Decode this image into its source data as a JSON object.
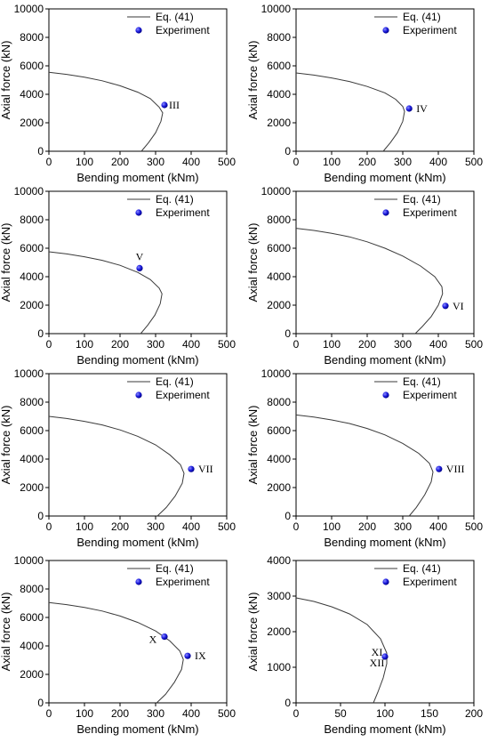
{
  "chart_data": [
    {
      "type": "line",
      "xlabel": "Bending moment (kNm)",
      "ylabel": "Axial force (kN)",
      "xlim": [
        0,
        500
      ],
      "ylim": [
        0,
        10000
      ],
      "xticks": [
        0,
        100,
        200,
        300,
        400,
        500
      ],
      "yticks": [
        0,
        2000,
        4000,
        6000,
        8000,
        10000
      ],
      "legend_position": "top-right",
      "series": [
        {
          "name": "Eq. (41)",
          "kind": "line",
          "points": [
            [
              0,
              5550
            ],
            [
              50,
              5400
            ],
            [
              100,
              5200
            ],
            [
              150,
              4950
            ],
            [
              200,
              4600
            ],
            [
              250,
              4150
            ],
            [
              285,
              3700
            ],
            [
              310,
              3100
            ],
            [
              320,
              2700
            ],
            [
              315,
              2100
            ],
            [
              300,
              1300
            ],
            [
              280,
              600
            ],
            [
              260,
              0
            ]
          ]
        },
        {
          "name": "Experiment",
          "kind": "scatter",
          "points": [
            {
              "x": 325,
              "y": 3250,
              "label": "III"
            }
          ]
        }
      ]
    },
    {
      "type": "line",
      "xlabel": "Bending moment (kNm)",
      "ylabel": "Axial force (kN)",
      "xlim": [
        0,
        500
      ],
      "ylim": [
        0,
        10000
      ],
      "xticks": [
        0,
        100,
        200,
        300,
        400,
        500
      ],
      "yticks": [
        0,
        2000,
        4000,
        6000,
        8000,
        10000
      ],
      "legend_position": "top-right",
      "series": [
        {
          "name": "Eq. (41)",
          "kind": "line",
          "points": [
            [
              0,
              5500
            ],
            [
              50,
              5350
            ],
            [
              100,
              5150
            ],
            [
              150,
              4900
            ],
            [
              200,
              4550
            ],
            [
              250,
              4100
            ],
            [
              280,
              3650
            ],
            [
              300,
              3150
            ],
            [
              305,
              2800
            ],
            [
              300,
              2100
            ],
            [
              285,
              1300
            ],
            [
              265,
              600
            ],
            [
              245,
              0
            ]
          ]
        },
        {
          "name": "Experiment",
          "kind": "scatter",
          "points": [
            {
              "x": 318,
              "y": 3000,
              "label": "IV"
            }
          ]
        }
      ]
    },
    {
      "type": "line",
      "xlabel": "Bending moment (kNm)",
      "ylabel": "Axial force (kN)",
      "xlim": [
        0,
        500
      ],
      "ylim": [
        0,
        10000
      ],
      "xticks": [
        0,
        100,
        200,
        300,
        400,
        500
      ],
      "yticks": [
        0,
        2000,
        4000,
        6000,
        8000,
        10000
      ],
      "legend_position": "top-right",
      "series": [
        {
          "name": "Eq. (41)",
          "kind": "line",
          "points": [
            [
              0,
              5750
            ],
            [
              50,
              5600
            ],
            [
              100,
              5400
            ],
            [
              150,
              5150
            ],
            [
              200,
              4800
            ],
            [
              250,
              4300
            ],
            [
              285,
              3800
            ],
            [
              310,
              3200
            ],
            [
              318,
              2800
            ],
            [
              313,
              2100
            ],
            [
              298,
              1300
            ],
            [
              278,
              600
            ],
            [
              258,
              0
            ]
          ]
        },
        {
          "name": "Experiment",
          "kind": "scatter",
          "points": [
            {
              "x": 255,
              "y": 4600,
              "label": "V"
            }
          ]
        }
      ]
    },
    {
      "type": "line",
      "xlabel": "Bending moment (kNm)",
      "ylabel": "Axial force (kN)",
      "xlim": [
        0,
        500
      ],
      "ylim": [
        0,
        10000
      ],
      "xticks": [
        0,
        100,
        200,
        300,
        400,
        500
      ],
      "yticks": [
        0,
        2000,
        4000,
        6000,
        8000,
        10000
      ],
      "legend_position": "top-right",
      "series": [
        {
          "name": "Eq. (41)",
          "kind": "line",
          "points": [
            [
              0,
              7400
            ],
            [
              50,
              7250
            ],
            [
              100,
              7050
            ],
            [
              150,
              6800
            ],
            [
              200,
              6450
            ],
            [
              250,
              6000
            ],
            [
              300,
              5450
            ],
            [
              350,
              4750
            ],
            [
              390,
              4000
            ],
            [
              410,
              3300
            ],
            [
              412,
              2800
            ],
            [
              400,
              2000
            ],
            [
              380,
              1200
            ],
            [
              355,
              500
            ],
            [
              335,
              0
            ]
          ]
        },
        {
          "name": "Experiment",
          "kind": "scatter",
          "points": [
            {
              "x": 420,
              "y": 1950,
              "label": "VI"
            }
          ]
        }
      ]
    },
    {
      "type": "line",
      "xlabel": "Bending moment (kNm)",
      "ylabel": "Axial force (kN)",
      "xlim": [
        0,
        500
      ],
      "ylim": [
        0,
        10000
      ],
      "xticks": [
        0,
        100,
        200,
        300,
        400,
        500
      ],
      "yticks": [
        0,
        2000,
        4000,
        6000,
        8000,
        10000
      ],
      "legend_position": "top-right",
      "series": [
        {
          "name": "Eq. (41)",
          "kind": "line",
          "points": [
            [
              0,
              7000
            ],
            [
              50,
              6850
            ],
            [
              100,
              6650
            ],
            [
              150,
              6400
            ],
            [
              200,
              6050
            ],
            [
              250,
              5600
            ],
            [
              300,
              5000
            ],
            [
              340,
              4300
            ],
            [
              370,
              3600
            ],
            [
              380,
              3000
            ],
            [
              375,
              2300
            ],
            [
              355,
              1400
            ],
            [
              330,
              600
            ],
            [
              305,
              0
            ]
          ]
        },
        {
          "name": "Experiment",
          "kind": "scatter",
          "points": [
            {
              "x": 400,
              "y": 3300,
              "label": "VII"
            }
          ]
        }
      ]
    },
    {
      "type": "line",
      "xlabel": "Bending moment (kNm)",
      "ylabel": "Axial force (kN)",
      "xlim": [
        0,
        500
      ],
      "ylim": [
        0,
        10000
      ],
      "xticks": [
        0,
        100,
        200,
        300,
        400,
        500
      ],
      "yticks": [
        0,
        2000,
        4000,
        6000,
        8000,
        10000
      ],
      "legend_position": "top-right",
      "series": [
        {
          "name": "Eq. (41)",
          "kind": "line",
          "points": [
            [
              0,
              7100
            ],
            [
              50,
              6950
            ],
            [
              100,
              6750
            ],
            [
              150,
              6500
            ],
            [
              200,
              6150
            ],
            [
              250,
              5700
            ],
            [
              300,
              5100
            ],
            [
              345,
              4400
            ],
            [
              375,
              3700
            ],
            [
              385,
              3100
            ],
            [
              380,
              2400
            ],
            [
              362,
              1500
            ],
            [
              338,
              600
            ],
            [
              318,
              0
            ]
          ]
        },
        {
          "name": "Experiment",
          "kind": "scatter",
          "points": [
            {
              "x": 402,
              "y": 3300,
              "label": "VIII"
            }
          ]
        }
      ]
    },
    {
      "type": "line",
      "xlabel": "Bending moment (kNm)",
      "ylabel": "Axial force (kN)",
      "xlim": [
        0,
        500
      ],
      "ylim": [
        0,
        10000
      ],
      "xticks": [
        0,
        100,
        200,
        300,
        400,
        500
      ],
      "yticks": [
        0,
        2000,
        4000,
        6000,
        8000,
        10000
      ],
      "legend_position": "top-right",
      "series": [
        {
          "name": "Eq. (41)",
          "kind": "line",
          "points": [
            [
              0,
              7050
            ],
            [
              50,
              6900
            ],
            [
              100,
              6700
            ],
            [
              150,
              6450
            ],
            [
              200,
              6100
            ],
            [
              250,
              5650
            ],
            [
              300,
              5050
            ],
            [
              340,
              4350
            ],
            [
              368,
              3650
            ],
            [
              378,
              3050
            ],
            [
              373,
              2350
            ],
            [
              353,
              1450
            ],
            [
              328,
              600
            ],
            [
              303,
              0
            ]
          ]
        },
        {
          "name": "Experiment",
          "kind": "scatter",
          "points": [
            {
              "x": 325,
              "y": 4650,
              "label": "X"
            },
            {
              "x": 390,
              "y": 3300,
              "label": "IX"
            }
          ]
        }
      ]
    },
    {
      "type": "line",
      "xlabel": "Bending moment (kNm)",
      "ylabel": "Axial force (kN)",
      "xlim": [
        0,
        200
      ],
      "ylim": [
        0,
        4000
      ],
      "xticks": [
        0,
        50,
        100,
        150,
        200
      ],
      "yticks": [
        0,
        1000,
        2000,
        3000,
        4000
      ],
      "legend_position": "top-right",
      "series": [
        {
          "name": "Eq. (41)",
          "kind": "line",
          "points": [
            [
              0,
              2950
            ],
            [
              20,
              2850
            ],
            [
              40,
              2700
            ],
            [
              60,
              2500
            ],
            [
              80,
              2200
            ],
            [
              95,
              1800
            ],
            [
              102,
              1400
            ],
            [
              102,
              1100
            ],
            [
              98,
              700
            ],
            [
              92,
              300
            ],
            [
              87,
              0
            ]
          ]
        },
        {
          "name": "Experiment",
          "kind": "scatter",
          "points": [
            {
              "x": 100,
              "y": 1300,
              "label": "XI\nXII"
            }
          ]
        }
      ]
    }
  ]
}
